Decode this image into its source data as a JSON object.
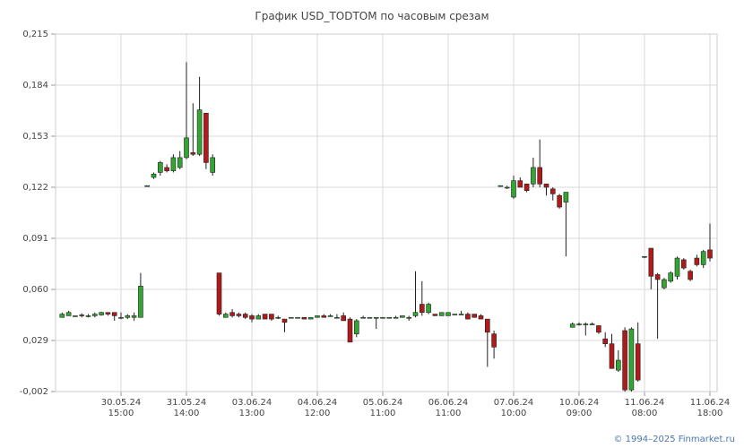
{
  "chart_data": {
    "type": "candlestick",
    "title": "График USD_TODTOM по часовым срезам",
    "footer": "© 1994–2025 Finmarket.ru",
    "categories": [
      null,
      null,
      null,
      null,
      null,
      null,
      null,
      null,
      null,
      "30.05.24\n15:00",
      null,
      null,
      null,
      null,
      null,
      null,
      null,
      null,
      null,
      "31.05.24\n14:00",
      null,
      null,
      null,
      null,
      null,
      null,
      null,
      null,
      null,
      "03.06.24\n13:00",
      null,
      null,
      null,
      null,
      null,
      null,
      null,
      null,
      null,
      "04.06.24\n12:00",
      null,
      null,
      null,
      null,
      null,
      null,
      null,
      null,
      null,
      "05.06.24\n11:00",
      null,
      null,
      null,
      null,
      null,
      null,
      null,
      null,
      null,
      "06.06.24\n11:00",
      null,
      null,
      null,
      null,
      null,
      null,
      null,
      null,
      null,
      "07.06.24\n10:00",
      null,
      null,
      null,
      null,
      null,
      null,
      null,
      null,
      null,
      "10.06.24\n09:00",
      null,
      null,
      null,
      null,
      null,
      null,
      null,
      null,
      null,
      "11.06.24\n08:00",
      null,
      null,
      null,
      null,
      null,
      null,
      null,
      null,
      null,
      "11.06.24\n18:00"
    ],
    "open": [
      0.043,
      0.044,
      0.044,
      0.0445,
      0.044,
      0.044,
      0.0445,
      0.046,
      0.046,
      0.043,
      0.043,
      0.043,
      0.043,
      0.123,
      0.128,
      0.131,
      0.134,
      0.132,
      0.134,
      0.14,
      0.143,
      0.142,
      0.167,
      0.131,
      0.07,
      0.043,
      0.046,
      0.045,
      0.045,
      0.044,
      0.042,
      0.045,
      0.045,
      0.043,
      0.042,
      0.043,
      0.043,
      0.043,
      0.042,
      0.043,
      0.044,
      0.044,
      0.043,
      0.044,
      0.042,
      0.033,
      0.043,
      0.043,
      0.043,
      0.043,
      0.043,
      0.043,
      0.043,
      0.043,
      0.044,
      0.051,
      0.046,
      0.045,
      0.044,
      0.044,
      0.045,
      0.045,
      0.045,
      0.045,
      0.044,
      0.042,
      0.033,
      0.123,
      0.122,
      0.116,
      0.126,
      0.124,
      0.124,
      0.134,
      0.124,
      0.121,
      0.117,
      0.113,
      0.037,
      0.039,
      0.039,
      0.039,
      0.038,
      0.03,
      0.027,
      0.011,
      0.035,
      -0.001,
      0.027,
      0.08,
      0.085,
      0.069,
      0.061,
      0.065,
      0.068,
      0.078,
      0.071,
      0.079,
      0.075,
      0.084
    ],
    "high": [
      0.046,
      0.047,
      0.044,
      0.0455,
      0.045,
      0.046,
      0.0465,
      0.046,
      0.046,
      0.046,
      0.045,
      0.046,
      0.07,
      0.123,
      0.131,
      0.138,
      0.136,
      0.142,
      0.144,
      0.198,
      0.173,
      0.189,
      0.167,
      0.142,
      0.07,
      0.046,
      0.048,
      0.046,
      0.046,
      0.045,
      0.045,
      0.045,
      0.045,
      0.044,
      0.042,
      0.043,
      0.043,
      0.043,
      0.043,
      0.044,
      0.045,
      0.045,
      0.045,
      0.046,
      0.043,
      0.042,
      0.044,
      0.043,
      0.043,
      0.043,
      0.043,
      0.044,
      0.044,
      0.044,
      0.071,
      0.065,
      0.052,
      0.045,
      0.046,
      0.046,
      0.045,
      0.047,
      0.046,
      0.045,
      0.045,
      0.042,
      0.035,
      0.123,
      0.123,
      0.129,
      0.128,
      0.124,
      0.14,
      0.151,
      0.124,
      0.122,
      0.118,
      0.119,
      0.04,
      0.04,
      0.04,
      0.04,
      0.038,
      0.034,
      0.033,
      0.023,
      0.037,
      0.037,
      0.04,
      0.08,
      0.085,
      0.07,
      0.067,
      0.071,
      0.08,
      0.079,
      0.072,
      0.081,
      0.084,
      0.1
    ],
    "low": [
      0.043,
      0.044,
      0.044,
      0.043,
      0.043,
      0.043,
      0.044,
      0.044,
      0.041,
      0.042,
      0.042,
      0.041,
      0.043,
      0.123,
      0.127,
      0.129,
      0.131,
      0.131,
      0.133,
      0.139,
      0.141,
      0.141,
      0.133,
      0.129,
      0.044,
      0.043,
      0.043,
      0.043,
      0.042,
      0.04,
      0.042,
      0.042,
      0.041,
      0.042,
      0.034,
      0.043,
      0.043,
      0.042,
      0.042,
      0.043,
      0.043,
      0.044,
      0.043,
      0.041,
      0.028,
      0.031,
      0.043,
      0.043,
      0.036,
      0.043,
      0.043,
      0.043,
      0.043,
      0.041,
      0.043,
      0.044,
      0.045,
      0.044,
      0.044,
      0.044,
      0.045,
      0.045,
      0.042,
      0.043,
      0.042,
      0.013,
      0.018,
      0.123,
      0.121,
      0.115,
      0.122,
      0.119,
      0.122,
      0.122,
      0.117,
      0.114,
      0.109,
      0.08,
      0.037,
      0.038,
      0.032,
      0.039,
      0.033,
      0.025,
      0.012,
      0.01,
      -0.002,
      -0.002,
      0.004,
      0.079,
      0.06,
      0.03,
      0.06,
      0.064,
      0.066,
      0.072,
      0.065,
      0.074,
      0.073,
      0.077
    ],
    "close": [
      0.045,
      0.046,
      0.044,
      0.044,
      0.044,
      0.045,
      0.046,
      0.045,
      0.044,
      0.043,
      0.044,
      0.044,
      0.062,
      0.123,
      0.13,
      0.137,
      0.132,
      0.14,
      0.14,
      0.152,
      0.142,
      0.169,
      0.137,
      0.14,
      0.045,
      0.045,
      0.044,
      0.044,
      0.043,
      0.042,
      0.044,
      0.042,
      0.042,
      0.043,
      0.04,
      0.043,
      0.043,
      0.042,
      0.043,
      0.044,
      0.043,
      0.044,
      0.043,
      0.041,
      0.028,
      0.041,
      0.043,
      0.043,
      0.043,
      0.043,
      0.043,
      0.043,
      0.044,
      0.043,
      0.046,
      0.046,
      0.051,
      0.044,
      0.046,
      0.046,
      0.045,
      0.045,
      0.042,
      0.043,
      0.042,
      0.034,
      0.025,
      0.123,
      0.122,
      0.126,
      0.122,
      0.12,
      0.134,
      0.124,
      0.122,
      0.118,
      0.11,
      0.119,
      0.039,
      0.039,
      0.039,
      0.039,
      0.034,
      0.027,
      0.012,
      0.017,
      -0.001,
      0.036,
      0.005,
      0.08,
      0.068,
      0.066,
      0.066,
      0.07,
      0.079,
      0.073,
      0.066,
      0.075,
      0.083,
      0.079
    ],
    "up_color": "#33a532",
    "down_color": "#b01a1a",
    "ylim": [
      -0.002,
      0.215
    ],
    "yticks": [
      {
        "value": -0.002,
        "label": "-0,002"
      },
      {
        "value": 0.029,
        "label": "0,029"
      },
      {
        "value": 0.06,
        "label": "0,060"
      },
      {
        "value": 0.091,
        "label": "0,091"
      },
      {
        "value": 0.122,
        "label": "0,122"
      },
      {
        "value": 0.153,
        "label": "0,153"
      },
      {
        "value": 0.184,
        "label": "0,184"
      },
      {
        "value": 0.215,
        "label": "0,215"
      }
    ],
    "grid": true
  }
}
